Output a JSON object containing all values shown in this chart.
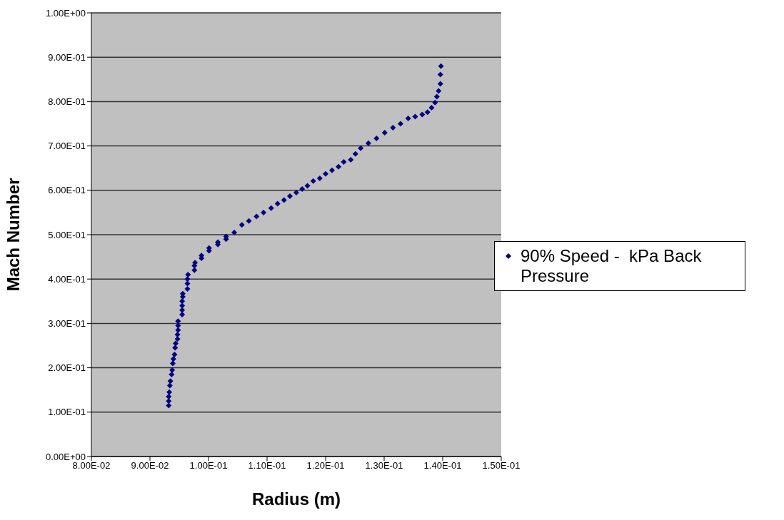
{
  "chart_data": {
    "type": "scatter",
    "xlabel": "Radius (m)",
    "ylabel": "Mach Number",
    "xlim": [
      0.08,
      0.15
    ],
    "xticks": [
      {
        "value": 0.08,
        "label": "8.00E-02"
      },
      {
        "value": 0.09,
        "label": "9.00E-02"
      },
      {
        "value": 0.1,
        "label": "1.00E-01"
      },
      {
        "value": 0.11,
        "label": "1.10E-01"
      },
      {
        "value": 0.12,
        "label": "1.20E-01"
      },
      {
        "value": 0.13,
        "label": "1.30E-01"
      },
      {
        "value": 0.14,
        "label": "1.40E-01"
      },
      {
        "value": 0.15,
        "label": "1.50E-01"
      }
    ],
    "ylim": [
      0,
      1
    ],
    "yticks": [
      {
        "value": 0,
        "label": "0.00E+00"
      },
      {
        "value": 0.1,
        "label": "1.00E-01"
      },
      {
        "value": 0.2,
        "label": "2.00E-01"
      },
      {
        "value": 0.3,
        "label": "3.00E-01"
      },
      {
        "value": 0.4,
        "label": "4.00E-01"
      },
      {
        "value": 0.5,
        "label": "5.00E-01"
      },
      {
        "value": 0.6,
        "label": "6.00E-01"
      },
      {
        "value": 0.7,
        "label": "7.00E-01"
      },
      {
        "value": 0.8,
        "label": "8.00E-01"
      },
      {
        "value": 0.9,
        "label": "9.00E-01"
      },
      {
        "value": 1,
        "label": "1.00E+00"
      }
    ],
    "grid": "y",
    "legend": "right",
    "marker": "diamond",
    "series": [
      {
        "name": "90% Speed -  kPa Back Pressure",
        "color": "#000080",
        "x": [
          0.0932,
          0.0932,
          0.0932,
          0.0933,
          0.0934,
          0.0935,
          0.0937,
          0.0938,
          0.0939,
          0.094,
          0.0942,
          0.0943,
          0.0944,
          0.0947,
          0.0947,
          0.0948,
          0.0948,
          0.0948,
          0.0955,
          0.0955,
          0.0955,
          0.0955,
          0.0956,
          0.0956,
          0.0964,
          0.0964,
          0.0964,
          0.0965,
          0.0976,
          0.0976,
          0.0977,
          0.0988,
          0.0988,
          0.1001,
          0.1001,
          0.1016,
          0.1016,
          0.103,
          0.103,
          0.1044,
          0.1057,
          0.1069,
          0.1082,
          0.1094,
          0.1107,
          0.1118,
          0.1129,
          0.1139,
          0.115,
          0.116,
          0.1169,
          0.1179,
          0.119,
          0.12,
          0.1211,
          0.1222,
          0.1231,
          0.1243,
          0.1251,
          0.126,
          0.1273,
          0.1287,
          0.1301,
          0.1315,
          0.1328,
          0.1341,
          0.1353,
          0.1365,
          0.1374,
          0.1381,
          0.1387,
          0.139,
          0.1393,
          0.1396,
          0.1396,
          0.1397
        ],
        "values": [
          0.115,
          0.125,
          0.135,
          0.145,
          0.16,
          0.17,
          0.185,
          0.195,
          0.21,
          0.22,
          0.23,
          0.245,
          0.255,
          0.265,
          0.275,
          0.285,
          0.295,
          0.305,
          0.32,
          0.33,
          0.34,
          0.35,
          0.36,
          0.367,
          0.378,
          0.39,
          0.4,
          0.41,
          0.42,
          0.43,
          0.437,
          0.447,
          0.453,
          0.464,
          0.47,
          0.478,
          0.483,
          0.49,
          0.496,
          0.505,
          0.522,
          0.531,
          0.541,
          0.55,
          0.56,
          0.57,
          0.578,
          0.587,
          0.595,
          0.603,
          0.61,
          0.621,
          0.627,
          0.637,
          0.645,
          0.653,
          0.664,
          0.669,
          0.682,
          0.695,
          0.706,
          0.717,
          0.73,
          0.741,
          0.75,
          0.762,
          0.766,
          0.771,
          0.776,
          0.786,
          0.798,
          0.811,
          0.824,
          0.84,
          0.861,
          0.88
        ]
      }
    ]
  }
}
